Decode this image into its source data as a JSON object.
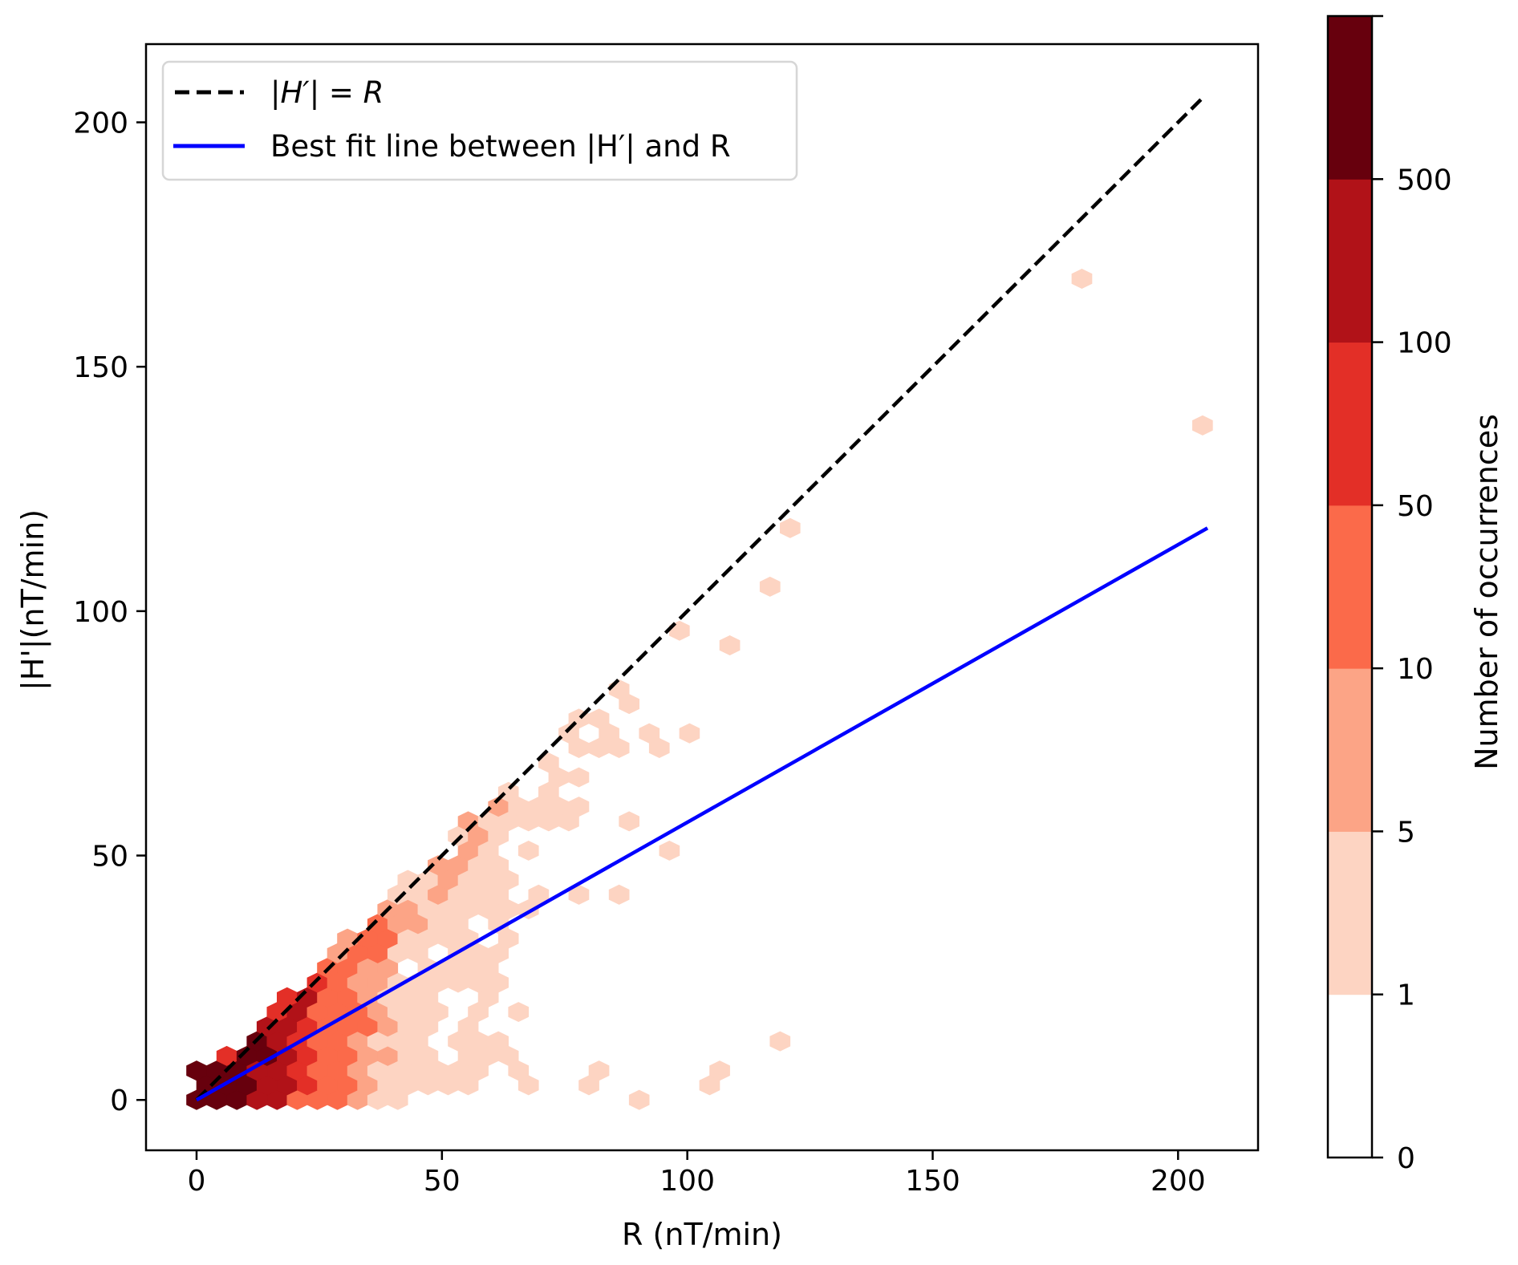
{
  "chart_data": {
    "type": "hexbin",
    "title": "",
    "xlabel": "R (nT/min)",
    "ylabel": "|H'|(nT/min)",
    "xlim": [
      -10.3,
      216.3
    ],
    "ylim": [
      -10.3,
      216.0
    ],
    "xticks": [
      0,
      50,
      100,
      150,
      200
    ],
    "xtick_labels": [
      "0",
      "50",
      "100",
      "150",
      "200"
    ],
    "yticks": [
      0,
      50,
      100,
      150,
      200
    ],
    "ytick_labels": [
      "0",
      "50",
      "100",
      "150",
      "200"
    ],
    "grid": false,
    "legend": {
      "placement": "top-left",
      "entries": [
        {
          "label": "|H′| = R",
          "style": "dashed",
          "color": "#000000"
        },
        {
          "label": "Best fit line between |H′| and R",
          "style": "solid",
          "color": "#0000ff"
        }
      ]
    },
    "lines": [
      {
        "name": "|H′| = R",
        "x": [
          0,
          205
        ],
        "y": [
          0,
          205
        ],
        "color": "#000000",
        "dashed": true
      },
      {
        "name": "Best fit line between |H′| and R",
        "x": [
          0,
          206
        ],
        "y": [
          0,
          117
        ],
        "color": "#0000ff",
        "dashed": false
      }
    ],
    "hexbin": {
      "bin_width": 4.1,
      "row_spacing": 3.0,
      "level_note": "level index refers to colorbar.bins",
      "rows": [
        [
          0,
          [
            [
              0,
              2,
              6
            ],
            [
              3,
              4,
              5
            ],
            [
              5,
              7,
              3
            ],
            [
              8,
              8,
              2
            ],
            [
              9,
              10,
              1
            ],
            [
              22,
              22,
              1
            ]
          ]
        ],
        [
          1,
          [
            [
              0,
              2,
              6
            ],
            [
              3,
              4,
              5
            ],
            [
              5,
              5,
              4
            ],
            [
              6,
              7,
              3
            ],
            [
              8,
              8,
              2
            ],
            [
              9,
              13,
              1
            ],
            [
              16,
              16,
              1
            ],
            [
              19,
              19,
              1
            ],
            [
              25,
              25,
              1
            ]
          ]
        ],
        [
          2,
          [
            [
              0,
              2,
              6
            ],
            [
              3,
              4,
              5
            ],
            [
              5,
              5,
              4
            ],
            [
              6,
              7,
              3
            ],
            [
              8,
              8,
              2
            ],
            [
              9,
              14,
              1
            ],
            [
              16,
              16,
              1
            ],
            [
              20,
              20,
              1
            ],
            [
              26,
              26,
              1
            ]
          ]
        ],
        [
          3,
          [
            [
              1,
              1,
              4
            ],
            [
              2,
              3,
              6
            ],
            [
              4,
              4,
              5
            ],
            [
              5,
              5,
              4
            ],
            [
              6,
              7,
              3
            ],
            [
              8,
              9,
              2
            ],
            [
              10,
              11,
              1
            ],
            [
              13,
              15,
              1
            ]
          ]
        ],
        [
          4,
          [
            [
              3,
              3,
              6
            ],
            [
              4,
              4,
              5
            ],
            [
              5,
              5,
              4
            ],
            [
              6,
              7,
              3
            ],
            [
              8,
              8,
              2
            ],
            [
              9,
              11,
              1
            ],
            [
              13,
              15,
              1
            ],
            [
              29,
              29,
              1
            ]
          ]
        ],
        [
          5,
          [
            [
              3,
              4,
              5
            ],
            [
              5,
              5,
              4
            ],
            [
              6,
              8,
              3
            ],
            [
              9,
              9,
              2
            ],
            [
              10,
              11,
              1
            ],
            [
              13,
              13,
              1
            ]
          ]
        ],
        [
          6,
          [
            [
              4,
              4,
              4
            ],
            [
              5,
              5,
              5
            ],
            [
              6,
              8,
              3
            ],
            [
              9,
              9,
              2
            ],
            [
              10,
              12,
              1
            ],
            [
              14,
              14,
              1
            ],
            [
              16,
              16,
              1
            ]
          ]
        ],
        [
          7,
          [
            [
              4,
              4,
              4
            ],
            [
              5,
              5,
              5
            ],
            [
              6,
              7,
              3
            ],
            [
              8,
              8,
              2
            ],
            [
              9,
              11,
              1
            ],
            [
              14,
              14,
              1
            ]
          ]
        ],
        [
          8,
          [
            [
              6,
              6,
              4
            ],
            [
              7,
              7,
              3
            ],
            [
              8,
              9,
              2
            ],
            [
              10,
              15,
              1
            ]
          ]
        ],
        [
          9,
          [
            [
              6,
              7,
              3
            ],
            [
              8,
              9,
              2
            ],
            [
              11,
              14,
              1
            ]
          ]
        ],
        [
          10,
          [
            [
              7,
              7,
              2
            ],
            [
              8,
              9,
              3
            ],
            [
              10,
              11,
              1
            ],
            [
              13,
              15,
              1
            ]
          ]
        ],
        [
          11,
          [
            [
              7,
              7,
              2
            ],
            [
              8,
              9,
              3
            ],
            [
              10,
              13,
              1
            ],
            [
              15,
              15,
              1
            ]
          ]
        ],
        [
          12,
          [
            [
              9,
              9,
              3
            ],
            [
              10,
              11,
              2
            ],
            [
              12,
              13,
              1
            ],
            [
              15,
              15,
              1
            ]
          ]
        ],
        [
          13,
          [
            [
              9,
              10,
              2
            ],
            [
              11,
              16,
              1
            ]
          ]
        ],
        [
          14,
          [
            [
              10,
              11,
              1
            ],
            [
              12,
              12,
              2
            ],
            [
              13,
              15,
              1
            ],
            [
              17,
              17,
              1
            ],
            [
              19,
              19,
              1
            ],
            [
              21,
              21,
              1
            ]
          ]
        ],
        [
          15,
          [
            [
              10,
              11,
              1
            ],
            [
              12,
              12,
              2
            ],
            [
              13,
              15,
              1
            ]
          ]
        ],
        [
          16,
          [
            [
              12,
              13,
              2
            ],
            [
              14,
              15,
              1
            ]
          ]
        ],
        [
          17,
          [
            [
              13,
              13,
              2
            ],
            [
              14,
              14,
              1
            ],
            [
              16,
              16,
              1
            ],
            [
              23,
              23,
              1
            ]
          ]
        ],
        [
          18,
          [
            [
              13,
              13,
              1
            ],
            [
              14,
              14,
              2
            ],
            [
              15,
              15,
              1
            ]
          ]
        ],
        [
          19,
          [
            [
              13,
              13,
              2
            ],
            [
              14,
              18,
              1
            ],
            [
              21,
              21,
              1
            ]
          ]
        ],
        [
          20,
          [
            [
              15,
              15,
              2
            ],
            [
              16,
              19,
              1
            ]
          ]
        ],
        [
          21,
          [
            [
              15,
              15,
              1
            ],
            [
              17,
              17,
              1
            ]
          ]
        ],
        [
          22,
          [
            [
              18,
              19,
              1
            ]
          ]
        ],
        [
          23,
          [
            [
              17,
              17,
              1
            ]
          ]
        ],
        [
          24,
          [
            [
              19,
              21,
              1
            ],
            [
              23,
              23,
              1
            ]
          ]
        ],
        [
          25,
          [
            [
              18,
              18,
              1
            ],
            [
              20,
              20,
              1
            ],
            [
              22,
              22,
              1
            ],
            [
              24,
              24,
              1
            ]
          ]
        ],
        [
          26,
          [
            [
              19,
              20,
              1
            ]
          ]
        ],
        [
          27,
          [
            [
              21,
              21,
              1
            ]
          ]
        ],
        [
          28,
          [
            [
              21,
              21,
              1
            ]
          ]
        ],
        [
          31,
          [
            [
              26,
              26,
              1
            ]
          ]
        ],
        [
          32,
          [
            [
              24,
              24,
              1
            ]
          ]
        ],
        [
          35,
          [
            [
              28,
              28,
              1
            ]
          ]
        ],
        [
          39,
          [
            [
              29,
              29,
              1
            ]
          ]
        ],
        [
          46,
          [
            [
              50,
              50,
              1
            ]
          ]
        ],
        [
          56,
          [
            [
              44,
              44,
              1
            ]
          ]
        ]
      ]
    },
    "colorbar": {
      "label": "Number of occurrences",
      "tick_labels": [
        "0",
        "1",
        "5",
        "10",
        "50",
        "100",
        "500"
      ],
      "bins": [
        {
          "range": "0–1",
          "color": "#ffffff"
        },
        {
          "range": "1–5",
          "color": "#fdd4c2"
        },
        {
          "range": "5–10",
          "color": "#fca486"
        },
        {
          "range": "10–50",
          "color": "#fb6a4a"
        },
        {
          "range": "50–100",
          "color": "#e32f27"
        },
        {
          "range": "100–500",
          "color": "#b11218"
        },
        {
          "range": "500+",
          "color": "#67000d"
        }
      ]
    }
  }
}
